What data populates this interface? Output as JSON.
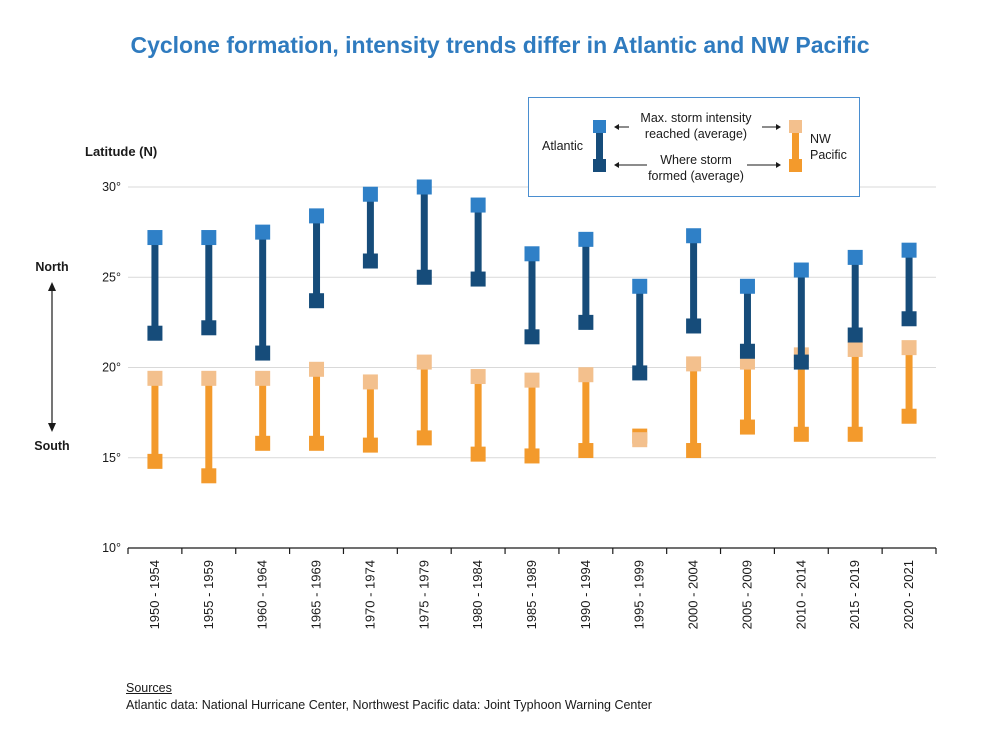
{
  "title": "Cyclone formation, intensity trends differ in Atlantic and NW Pacific",
  "colors": {
    "atlantic_top": "#2f80c7",
    "atlantic_bar": "#164c7a",
    "pacific_top": "#f3c08d",
    "pacific_bar": "#f39a2c",
    "grid": "#d9d9d9",
    "title": "#2f7bbf"
  },
  "legend": {
    "atlantic": "Atlantic",
    "pacific_line1": "NW",
    "pacific_line2": "Pacific",
    "max_line1": "Max. storm intensity",
    "max_line2": "reached (average)",
    "formed_line1": "Where storm",
    "formed_line2": "formed (average)"
  },
  "direction": {
    "north": "North",
    "south": "South"
  },
  "sources": {
    "heading": "Sources",
    "text": "Atlantic data: National Hurricane Center, Northwest Pacific data: Joint Typhoon Warning Center"
  },
  "chart_data": {
    "type": "range-bar",
    "ylabel": "Latitude (N)",
    "ylim": [
      10,
      30
    ],
    "yticks": [
      10,
      15,
      20,
      25,
      30
    ],
    "ytick_labels": [
      "10°",
      "15°",
      "20°",
      "25°",
      "30°"
    ],
    "grid": true,
    "legend_position": "top-right",
    "categories": [
      "1950 - 1954",
      "1955 - 1959",
      "1960 - 1964",
      "1965 - 1969",
      "1970 - 1974",
      "1975 - 1979",
      "1980 - 1984",
      "1985 - 1989",
      "1990 - 1994",
      "1995 - 1999",
      "2000 - 2004",
      "2005 - 2009",
      "2010 - 2014",
      "2015 - 2019",
      "2020 - 2021"
    ],
    "series": [
      {
        "name": "Atlantic",
        "max_intensity_latitude": [
          27.2,
          27.2,
          27.5,
          28.4,
          29.6,
          30.0,
          29.0,
          26.3,
          27.1,
          24.5,
          27.3,
          24.5,
          25.4,
          26.1,
          26.5
        ],
        "formation_latitude": [
          21.9,
          22.2,
          20.8,
          23.7,
          25.9,
          25.0,
          24.9,
          21.7,
          22.5,
          19.7,
          22.3,
          20.9,
          20.3,
          21.8,
          22.7
        ]
      },
      {
        "name": "NW Pacific",
        "max_intensity_latitude": [
          19.4,
          19.4,
          19.4,
          19.9,
          19.2,
          20.3,
          19.5,
          19.3,
          19.6,
          16.0,
          20.2,
          20.3,
          20.7,
          21.0,
          21.1
        ],
        "formation_latitude": [
          14.8,
          14.0,
          15.8,
          15.8,
          15.7,
          16.1,
          15.2,
          15.1,
          15.4,
          16.2,
          15.4,
          16.7,
          16.3,
          16.3,
          17.3
        ]
      }
    ]
  }
}
